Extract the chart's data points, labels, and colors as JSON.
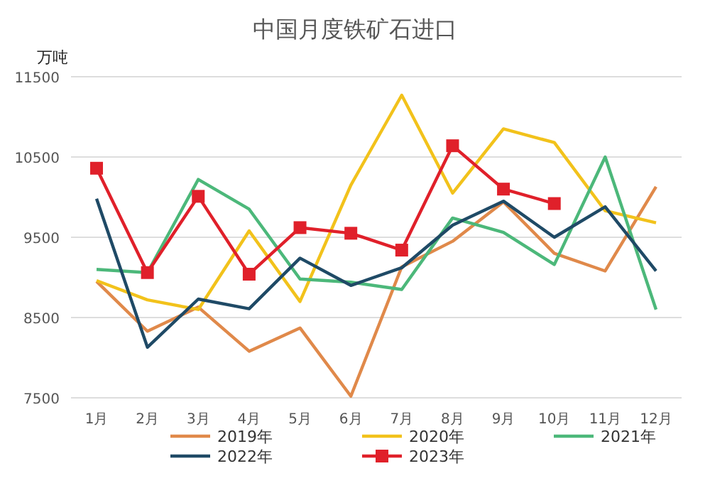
{
  "chart_data": {
    "type": "line",
    "title": "中国月度铁矿石进口",
    "ylabel": "万吨",
    "categories": [
      "1月",
      "2月",
      "3月",
      "4月",
      "5月",
      "6月",
      "7月",
      "8月",
      "9月",
      "10月",
      "11月",
      "12月"
    ],
    "ylim": [
      7500,
      11500
    ],
    "yticks": [
      7500,
      8500,
      9500,
      10500,
      11500
    ],
    "grid": "y",
    "legend": "bottom",
    "series": [
      {
        "name": "2019年",
        "color": "#e0894a",
        "marker": "none",
        "values": [
          8950,
          8330,
          8630,
          8080,
          8370,
          7520,
          9130,
          9450,
          9940,
          9300,
          9080,
          10130
        ]
      },
      {
        "name": "2020年",
        "color": "#f2c21b",
        "marker": "none",
        "values": [
          8960,
          8720,
          8600,
          9580,
          8700,
          10150,
          11270,
          10050,
          10850,
          10680,
          9830,
          9680
        ]
      },
      {
        "name": "2021年",
        "color": "#4cb87a",
        "marker": "none",
        "values": [
          9100,
          9060,
          10220,
          9850,
          8980,
          8940,
          8850,
          9740,
          9560,
          9160,
          10500,
          8600
        ]
      },
      {
        "name": "2022年",
        "color": "#1f4a66",
        "marker": "none",
        "values": [
          9980,
          8130,
          8730,
          8610,
          9240,
          8900,
          9120,
          9650,
          9950,
          9500,
          9880,
          9080
        ]
      },
      {
        "name": "2023年",
        "color": "#e0202a",
        "marker": "square",
        "values": [
          10360,
          9060,
          10010,
          9040,
          9620,
          9550,
          9340,
          10640,
          10100,
          9920,
          null,
          null
        ]
      }
    ]
  }
}
